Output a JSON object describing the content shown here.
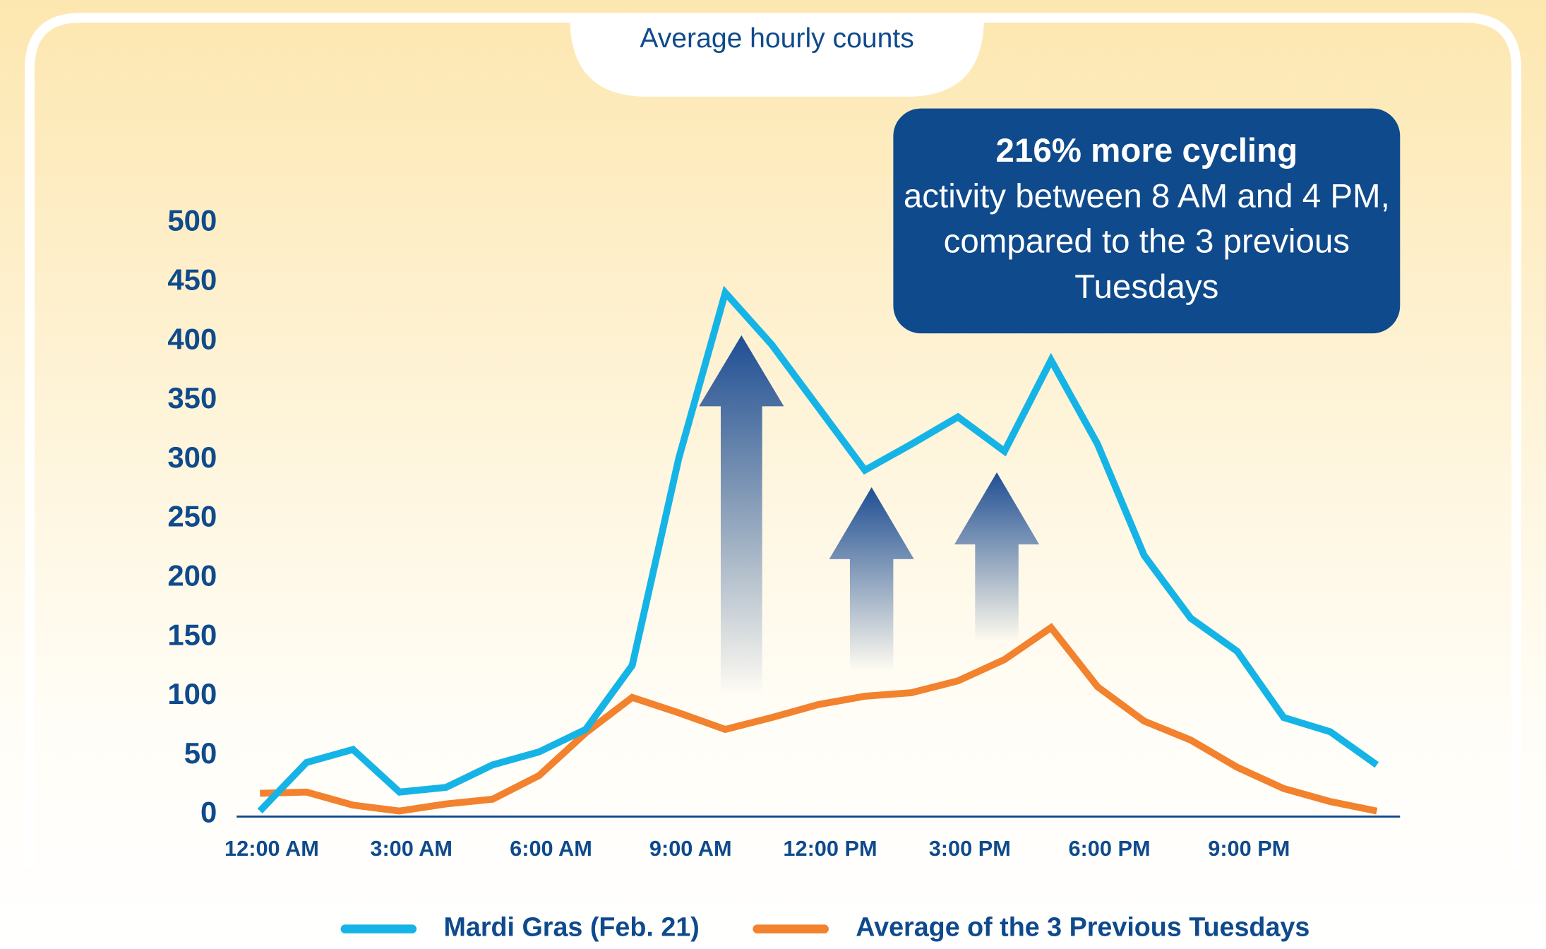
{
  "chart_data": {
    "type": "line",
    "title": "Average hourly counts",
    "annotation": {
      "headline": "216% more cycling",
      "text": "activity between 8 AM and 4 PM, compared to the 3 previous Tuesdays"
    },
    "x": [
      0,
      1,
      2,
      3,
      4,
      5,
      6,
      7,
      8,
      9,
      10,
      11,
      12,
      13,
      14,
      15,
      16,
      17,
      18,
      19,
      20,
      21,
      22,
      23,
      24
    ],
    "xlim": [
      -0.5,
      24.5
    ],
    "xticks": [
      {
        "value": 0,
        "label": "12:00 AM"
      },
      {
        "value": 3,
        "label": "3:00 AM"
      },
      {
        "value": 6,
        "label": "6:00 AM"
      },
      {
        "value": 9,
        "label": "9:00 AM"
      },
      {
        "value": 12,
        "label": "12:00 PM"
      },
      {
        "value": 15,
        "label": "3:00 PM"
      },
      {
        "value": 18,
        "label": "6:00 PM"
      },
      {
        "value": 21,
        "label": "9:00 PM"
      }
    ],
    "ylim": [
      0,
      500
    ],
    "yticks": [
      0,
      50,
      100,
      150,
      200,
      250,
      300,
      350,
      400,
      450,
      500
    ],
    "series": [
      {
        "name": "Mardi Gras (Feb. 21)",
        "color": "#16b4e6",
        "values": [
          3,
          44,
          55,
          19,
          23,
          42,
          53,
          72,
          126,
          301,
          441,
          397,
          344,
          291,
          313,
          336,
          307,
          384,
          313,
          219,
          166,
          138,
          82,
          70,
          42
        ]
      },
      {
        "name": "Average of the 3 Previous Tuesdays",
        "color": "#f2822e",
        "values": [
          18,
          19,
          8,
          3,
          9,
          13,
          33,
          69,
          99,
          86,
          72,
          82,
          93,
          100,
          103,
          113,
          131,
          158,
          108,
          79,
          63,
          40,
          22,
          11,
          3
        ]
      }
    ]
  }
}
